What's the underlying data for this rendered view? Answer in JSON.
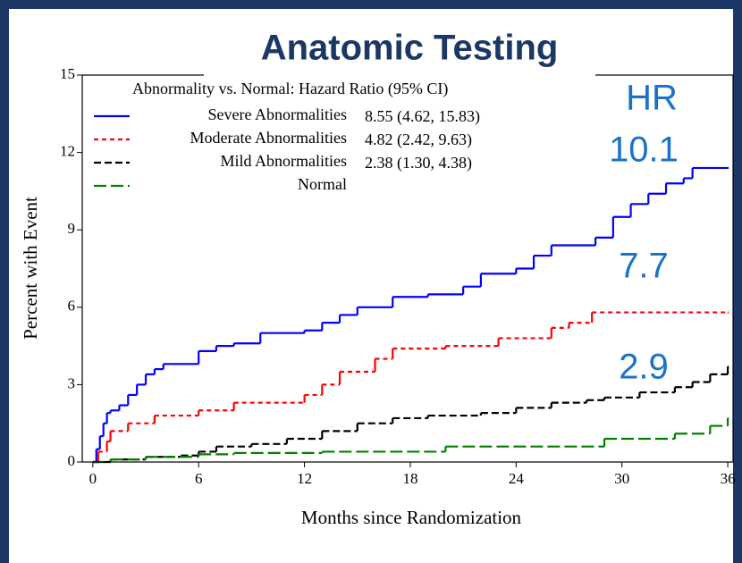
{
  "chart_data": {
    "type": "step",
    "title": "Anatomic Testing",
    "xlabel": "Months since Randomization",
    "ylabel": "Percent with Event",
    "legend_title": "Abnormality vs. Normal: Hazard Ratio (95% CI)",
    "xlim": [
      -0.6,
      36.3
    ],
    "ylim": [
      0,
      15
    ],
    "xticks": [
      0,
      6,
      12,
      18,
      24,
      30,
      36
    ],
    "yticks": [
      0,
      3,
      6,
      9,
      12,
      15
    ],
    "series": [
      {
        "name": "Severe Abnormalities",
        "hazard_ratio": "8.55 (4.62, 15.83)",
        "color": "#0000ff",
        "dash": "none",
        "x": [
          0,
          0.2,
          0.4,
          0.6,
          0.8,
          1,
          1.5,
          2,
          2.5,
          3,
          3.5,
          4,
          5,
          6,
          7,
          8,
          9.5,
          12,
          13,
          14,
          15,
          17,
          19,
          21,
          22,
          24,
          25,
          26,
          28.5,
          29.5,
          30.5,
          31.5,
          32.5,
          33.5,
          34,
          36
        ],
        "values": [
          0,
          0.5,
          1,
          1.5,
          1.9,
          2,
          2.2,
          2.6,
          3,
          3.4,
          3.6,
          3.8,
          3.8,
          4.3,
          4.5,
          4.6,
          5,
          5.1,
          5.4,
          5.7,
          6,
          6.4,
          6.5,
          6.8,
          7.3,
          7.5,
          8,
          8.4,
          8.7,
          9.5,
          10,
          10.4,
          10.8,
          11,
          11.4,
          11.4
        ]
      },
      {
        "name": "Moderate Abnormalities",
        "hazard_ratio": "4.82 (2.42, 9.63)",
        "color": "#ff0000",
        "dash": "5,4",
        "x": [
          0,
          0.3,
          0.8,
          1,
          2,
          3.5,
          6,
          8,
          12,
          13,
          14,
          16,
          17,
          20,
          23,
          26,
          27,
          28.3,
          36
        ],
        "values": [
          0,
          0.4,
          0.8,
          1.2,
          1.5,
          1.8,
          2,
          2.3,
          2.6,
          3,
          3.5,
          4,
          4.4,
          4.5,
          4.8,
          5.2,
          5.4,
          5.8,
          5.8
        ]
      },
      {
        "name": "Mild Abnormalities",
        "hazard_ratio": "2.38 (1.30, 4.38)",
        "color": "#000000",
        "dash": "8,4",
        "x": [
          0,
          1,
          3,
          5,
          6,
          7,
          9,
          11,
          13,
          15,
          17,
          19,
          22,
          24,
          26,
          28,
          29,
          31,
          33,
          34,
          35,
          36
        ],
        "values": [
          0,
          0.1,
          0.2,
          0.25,
          0.4,
          0.6,
          0.7,
          0.9,
          1.2,
          1.5,
          1.7,
          1.8,
          1.9,
          2.1,
          2.3,
          2.4,
          2.5,
          2.7,
          2.9,
          3.1,
          3.4,
          3.7
        ]
      },
      {
        "name": "Normal",
        "color": "#008000",
        "dash": "14,5",
        "x": [
          0,
          1,
          3,
          6,
          8,
          13,
          20,
          29,
          33,
          35,
          36
        ],
        "values": [
          0,
          0.1,
          0.2,
          0.3,
          0.35,
          0.4,
          0.6,
          0.9,
          1.1,
          1.4,
          1.7
        ]
      }
    ],
    "annotations": [
      {
        "text": "HR",
        "color": "#1a73c8"
      },
      {
        "text": "10.1",
        "color": "#1a73c8"
      },
      {
        "text": "7.7",
        "color": "#1a73c8"
      },
      {
        "text": "2.9",
        "color": "#1a73c8"
      }
    ]
  }
}
